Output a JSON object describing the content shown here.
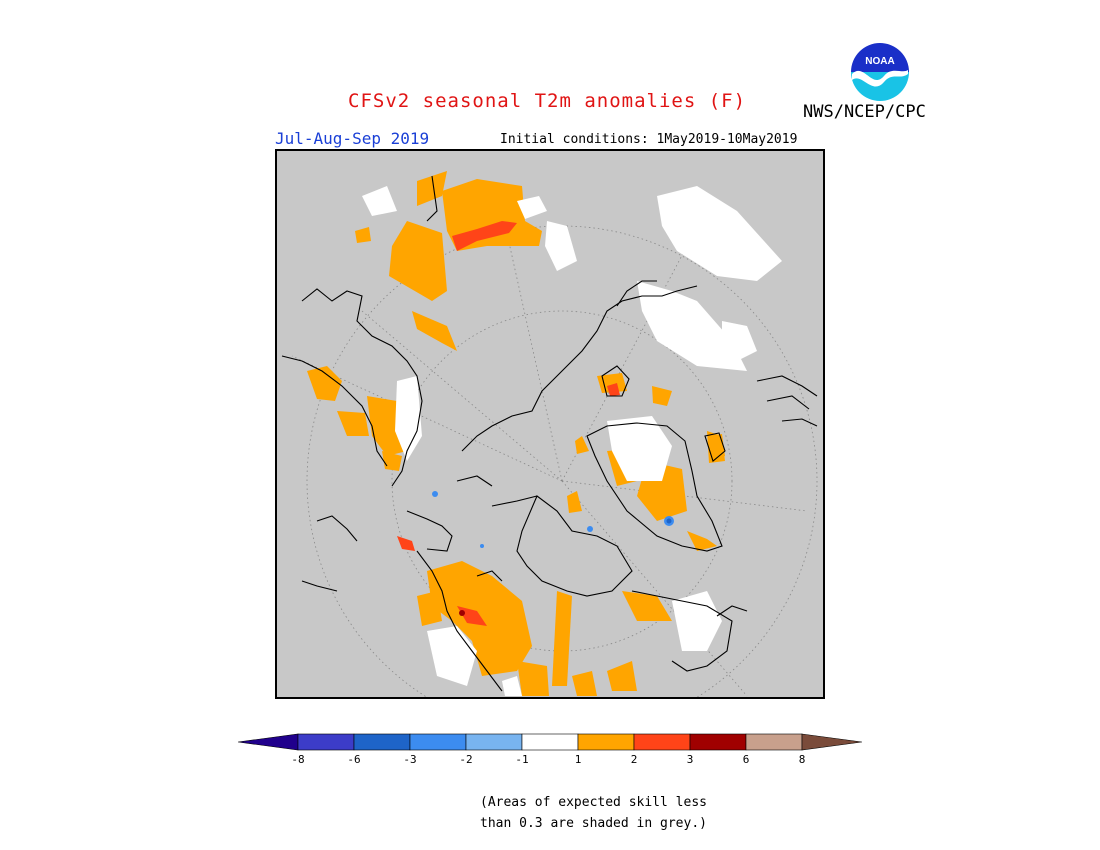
{
  "title": "CFSv2 seasonal T2m anomalies (F)",
  "period": "Jul-Aug-Sep 2019",
  "initial_conditions": "Initial conditions: 1May2019-10May2019",
  "organization": "NWS/NCEP/CPC",
  "logo_text": "NOAA",
  "colors": {
    "title": "#e01414",
    "period": "#1a3fd6",
    "skill_mask_grey": "#c8c8c8",
    "neutral_white": "#ffffff",
    "warm_1_2": "#ffa500",
    "warm_2_3": "#ff4418",
    "warm_3_6": "#a00000",
    "warm_6_8": "#c8a08c",
    "warm_gt8": "#7a4b3a",
    "cold_m1_m2": "#78b4f0",
    "cold_m2_m3": "#3c8cf0",
    "cold_m3_m6": "#1e64c8",
    "cold_m6_m8": "#3c3cc8",
    "cold_lt_m8": "#20008c"
  },
  "colorbar": {
    "ticks": [
      "-8",
      "-6",
      "-3",
      "-2",
      "-1",
      "1",
      "2",
      "3",
      "6",
      "8"
    ]
  },
  "footnote": {
    "line1": "(Areas of expected skill less",
    "line2": "than 0.3 are shaded in grey.)"
  }
}
